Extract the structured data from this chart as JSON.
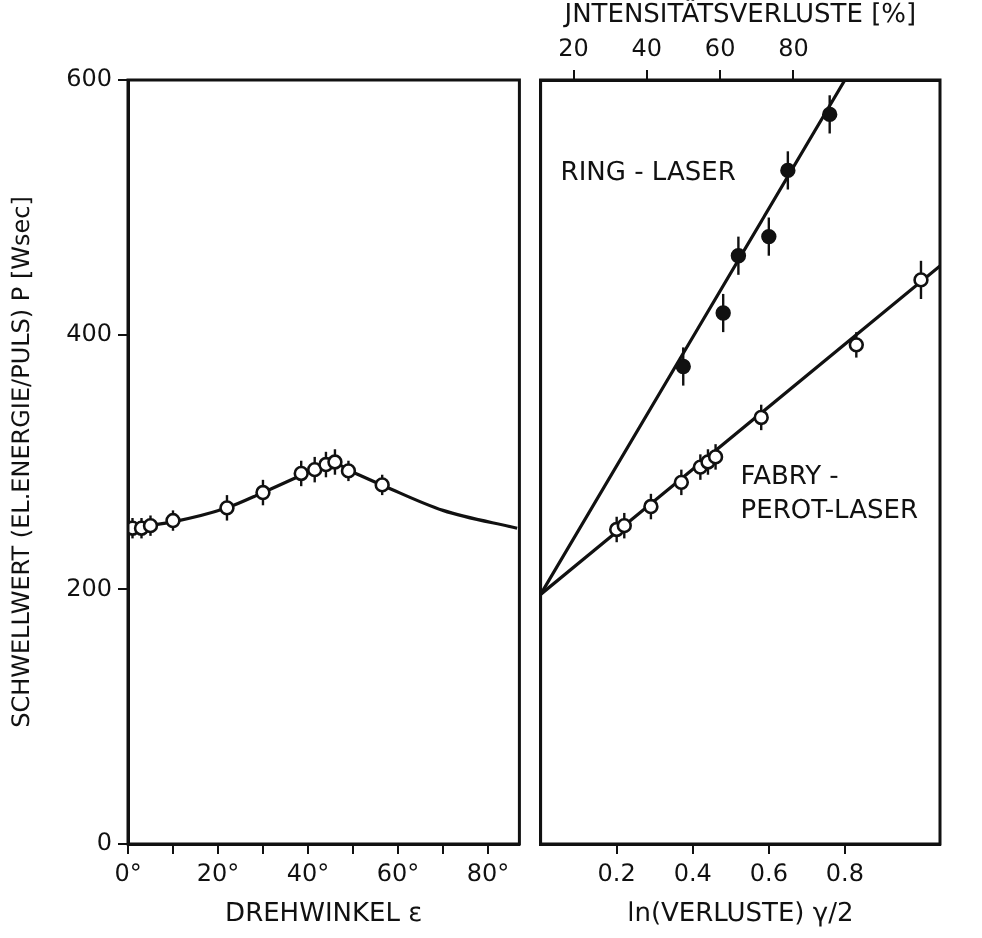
{
  "chart_data": [
    {
      "type": "scatter",
      "xlabel": "DREHWINKEL ε",
      "ylabel": "SCHWELLWERT (EL.ENERGIE/PULS) P [Wsec]",
      "xlim": [
        0,
        87
      ],
      "ylim": [
        0,
        600
      ],
      "xticks": [
        {
          "value": 0,
          "label": "0°"
        },
        {
          "value": 10,
          "label": null
        },
        {
          "value": 20,
          "label": "20°"
        },
        {
          "value": 30,
          "label": null
        },
        {
          "value": 40,
          "label": "40°"
        },
        {
          "value": 50,
          "label": null
        },
        {
          "value": 60,
          "label": "60°"
        },
        {
          "value": 70,
          "label": null
        },
        {
          "value": 80,
          "label": "80°"
        }
      ],
      "yticks": [
        0,
        200,
        400,
        600
      ],
      "series": [
        {
          "type": "scatter",
          "marker": "circle",
          "color": "#111111",
          "x": [
            1,
            3,
            5,
            10,
            22,
            30,
            38.5,
            41.5,
            44,
            46,
            49,
            56.5
          ],
          "values": [
            248,
            248,
            250,
            254,
            264,
            276,
            291,
            294,
            298,
            300,
            293,
            282
          ],
          "errors": [
            8,
            8,
            8,
            8,
            10,
            10,
            10,
            10,
            10,
            10,
            8,
            8
          ]
        },
        {
          "type": "line",
          "marker": "none",
          "color": "#111111",
          "x": [
            0,
            10,
            22,
            30,
            40,
            45,
            50,
            57,
            70,
            86.5
          ],
          "values": [
            248,
            253,
            264,
            276,
            292,
            300,
            292,
            281,
            262,
            248
          ]
        }
      ]
    },
    {
      "type": "scatter",
      "xlabel": "ln(VERLUSTE) γ/2",
      "x2label": "JNTENSITÄTSVERLUSTE [%]",
      "xlim": [
        0,
        1.05
      ],
      "x2lim": [
        11,
        120
      ],
      "ylim": [
        0,
        600
      ],
      "tick_labels": "x",
      "xticks": [
        0.2,
        0.4,
        0.6,
        0.8
      ],
      "x2ticks": [
        20,
        40,
        60,
        80
      ],
      "yticks": [
        0,
        200,
        400,
        600
      ],
      "series": [
        {
          "name": "RING - LASER",
          "type": "scatter",
          "marker": "circle",
          "color": "#111111",
          "x": [
            0.375,
            0.48,
            0.52,
            0.6,
            0.65,
            0.76
          ],
          "values": [
            375,
            417,
            462,
            477,
            529,
            573
          ],
          "errors": [
            15,
            15,
            15,
            15,
            15,
            15
          ]
        },
        {
          "type": "line",
          "marker": "none",
          "color": "#111111",
          "x": [
            0,
            0.8
          ],
          "values": [
            196,
            600
          ]
        },
        {
          "name": "FABRY - PEROT-LASER",
          "type": "scatter",
          "marker": "circle",
          "color": "#111111",
          "x": [
            0.2,
            0.22,
            0.29,
            0.37,
            0.42,
            0.44,
            0.46,
            0.58,
            0.83,
            1.0
          ],
          "values": [
            247,
            250,
            265,
            284,
            296,
            300,
            304,
            335,
            392,
            443
          ],
          "errors": [
            10,
            10,
            10,
            10,
            10,
            10,
            10,
            10,
            10,
            15
          ]
        },
        {
          "type": "line",
          "marker": "none",
          "color": "#111111",
          "x": [
            0,
            1.05
          ],
          "values": [
            196,
            454
          ]
        }
      ]
    }
  ]
}
